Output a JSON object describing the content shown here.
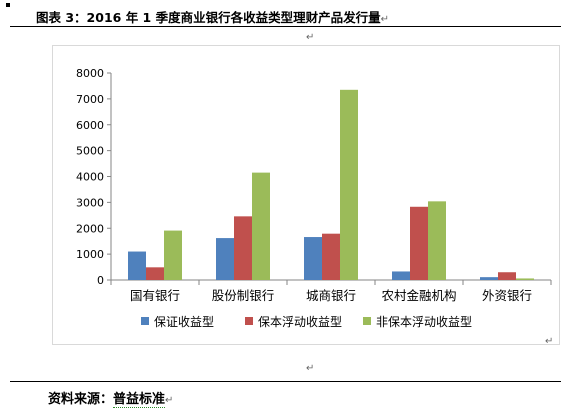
{
  "header": {
    "title": "图表 3：2016 年 1 季度商业银行各收益类型理财产品发行量",
    "return_mark": "↵"
  },
  "footer": {
    "source_label": "资料来源：",
    "source_value": "普益标准",
    "return_mark": "↵"
  },
  "chart_data": {
    "type": "bar",
    "title": "",
    "xlabel": "",
    "ylabel": "",
    "ylim": [
      0,
      8000
    ],
    "yticks": [
      0,
      1000,
      2000,
      3000,
      4000,
      5000,
      6000,
      7000,
      8000
    ],
    "grid": false,
    "legend_position": "bottom",
    "categories": [
      "国有银行",
      "股份制银行",
      "城商银行",
      "农村金融机构",
      "外资银行"
    ],
    "series": [
      {
        "name": "保证收益型",
        "color": "#4f81bd",
        "values": [
          1100,
          1620,
          1660,
          330,
          110
        ]
      },
      {
        "name": "保本浮动收益型",
        "color": "#c0504d",
        "values": [
          490,
          2460,
          1790,
          2830,
          300
        ]
      },
      {
        "name": "非保本浮动收益型",
        "color": "#9bbb59",
        "values": [
          1910,
          4150,
          7350,
          3040,
          60
        ]
      }
    ]
  }
}
